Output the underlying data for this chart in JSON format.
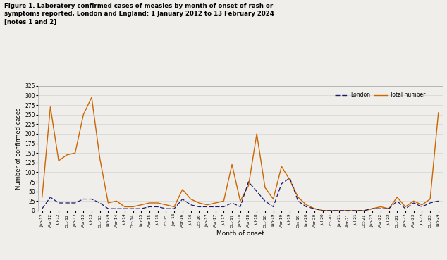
{
  "title_line1": "Figure 1. Laboratory confirmed cases of measles by month of onset of rash or",
  "title_line2": "symptoms reported, London and England: 1 January 2012 to 13 February 2024",
  "title_line3": "[notes 1 and 2]",
  "xlabel": "Month of onset",
  "ylabel": "Number of confirmed cases",
  "ylim": [
    0,
    325
  ],
  "yticks": [
    0,
    25,
    50,
    75,
    100,
    125,
    150,
    175,
    200,
    225,
    250,
    275,
    300,
    325
  ],
  "london_color": "#1a1a6e",
  "total_color": "#cc6600",
  "bg_color": "#f0eeeb",
  "months": [
    "Jan-12",
    "Apr-12",
    "Jul-12",
    "Oct-12",
    "Jan-13",
    "Apr-13",
    "Jul-13",
    "Oct-13",
    "Jan-14",
    "Apr-14",
    "Jul-14",
    "Oct-14",
    "Jan-15",
    "Apr-15",
    "Jul-15",
    "Oct-15",
    "Jan-16",
    "Apr-16",
    "Jul-16",
    "Oct-16",
    "Jan-17",
    "Apr-17",
    "Jul-17",
    "Oct-17",
    "Jan-18",
    "Apr-18",
    "Jul-18",
    "Oct-18",
    "Jan-19",
    "Apr-19",
    "Jul-19",
    "Oct-19",
    "Jan-20",
    "Apr-20",
    "Jul-20",
    "Oct-20",
    "Jan-21",
    "Apr-21",
    "Jul-21",
    "Oct-21",
    "Jan-22",
    "Apr-22",
    "Jul-22",
    "Oct-22",
    "Jan-23",
    "Apr-23",
    "Jul-23",
    "Oct-23",
    "Jan-24"
  ],
  "total": [
    35,
    270,
    130,
    145,
    150,
    250,
    295,
    135,
    20,
    25,
    10,
    10,
    15,
    20,
    20,
    15,
    10,
    55,
    30,
    20,
    15,
    20,
    25,
    120,
    25,
    65,
    200,
    60,
    30,
    115,
    80,
    35,
    15,
    5,
    0,
    0,
    0,
    0,
    0,
    0,
    5,
    10,
    5,
    35,
    10,
    25,
    15,
    30,
    255
  ],
  "london": [
    5,
    35,
    20,
    20,
    20,
    30,
    30,
    20,
    5,
    5,
    5,
    5,
    5,
    10,
    10,
    5,
    5,
    30,
    15,
    10,
    10,
    10,
    10,
    20,
    10,
    75,
    50,
    25,
    10,
    70,
    85,
    25,
    10,
    5,
    0,
    0,
    0,
    0,
    0,
    0,
    5,
    5,
    5,
    25,
    5,
    20,
    10,
    20,
    25
  ]
}
